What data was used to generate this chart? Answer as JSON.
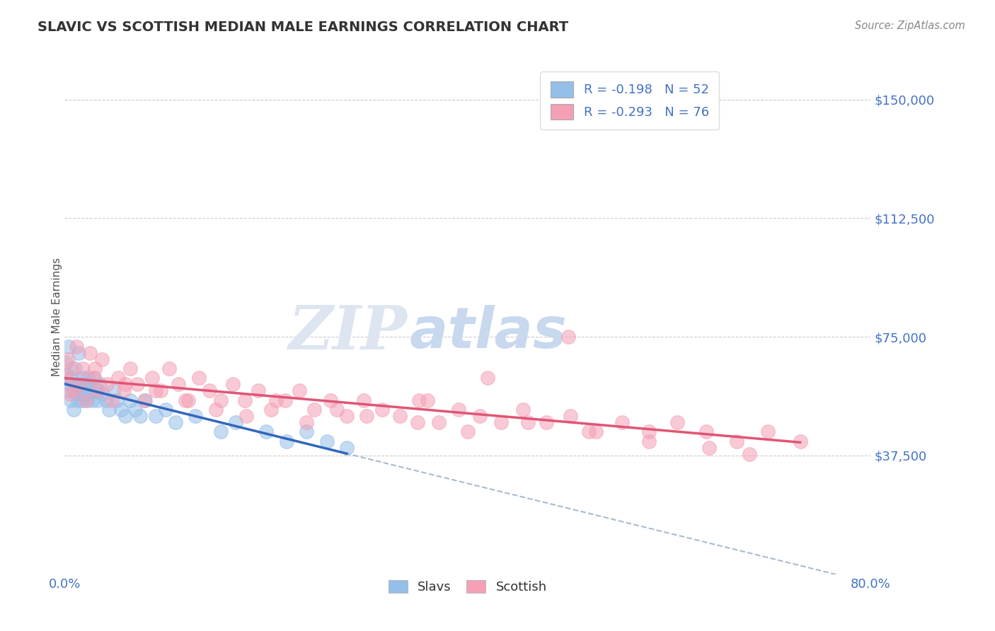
{
  "title": "SLAVIC VS SCOTTISH MEDIAN MALE EARNINGS CORRELATION CHART",
  "source": "Source: ZipAtlas.com",
  "ylabel": "Median Male Earnings",
  "xlim": [
    0.0,
    0.8
  ],
  "ylim": [
    0,
    162500
  ],
  "ytick_vals": [
    0,
    37500,
    75000,
    112500,
    150000
  ],
  "ytick_labels": [
    "",
    "$37,500",
    "$75,000",
    "$112,500",
    "$150,000"
  ],
  "xtick_vals": [
    0.0,
    0.1,
    0.2,
    0.3,
    0.4,
    0.5,
    0.6,
    0.7,
    0.8
  ],
  "xtick_labels": [
    "0.0%",
    "",
    "",
    "",
    "",
    "",
    "",
    "",
    "80.0%"
  ],
  "slavs_R": -0.198,
  "slavs_N": 52,
  "scottish_R": -0.293,
  "scottish_N": 76,
  "slavs_color": "#94bfe8",
  "scottish_color": "#f4a0b5",
  "slavs_line_color": "#3366bb",
  "scottish_line_color": "#e05575",
  "extended_line_color": "#aabbcc",
  "grid_color": "#cccccc",
  "background_color": "#ffffff",
  "title_color": "#333333",
  "axis_color": "#4472c4",
  "source_color": "#888888",
  "watermark_zip_color": "#dde5f0",
  "watermark_atlas_color": "#c8d8ee",
  "slavs_x": [
    0.001,
    0.002,
    0.003,
    0.004,
    0.005,
    0.006,
    0.007,
    0.008,
    0.009,
    0.01,
    0.011,
    0.012,
    0.013,
    0.014,
    0.015,
    0.016,
    0.017,
    0.018,
    0.019,
    0.02,
    0.021,
    0.022,
    0.023,
    0.024,
    0.025,
    0.027,
    0.029,
    0.031,
    0.033,
    0.035,
    0.038,
    0.041,
    0.044,
    0.048,
    0.052,
    0.056,
    0.06,
    0.065,
    0.07,
    0.075,
    0.08,
    0.09,
    0.1,
    0.11,
    0.13,
    0.155,
    0.17,
    0.2,
    0.22,
    0.24,
    0.26,
    0.28
  ],
  "slavs_y": [
    67000,
    63000,
    58000,
    72000,
    60000,
    55000,
    62000,
    58000,
    52000,
    65000,
    60000,
    57000,
    55000,
    70000,
    60000,
    58000,
    55000,
    62000,
    57000,
    60000,
    58000,
    55000,
    62000,
    57000,
    60000,
    55000,
    62000,
    58000,
    55000,
    60000,
    57000,
    55000,
    52000,
    58000,
    55000,
    52000,
    50000,
    55000,
    52000,
    50000,
    55000,
    50000,
    52000,
    48000,
    50000,
    45000,
    48000,
    45000,
    42000,
    45000,
    42000,
    40000
  ],
  "scottish_x": [
    0.001,
    0.003,
    0.005,
    0.007,
    0.009,
    0.012,
    0.015,
    0.018,
    0.021,
    0.025,
    0.029,
    0.033,
    0.037,
    0.042,
    0.047,
    0.053,
    0.059,
    0.065,
    0.072,
    0.079,
    0.087,
    0.095,
    0.104,
    0.113,
    0.123,
    0.133,
    0.144,
    0.155,
    0.167,
    0.179,
    0.192,
    0.205,
    0.219,
    0.233,
    0.248,
    0.264,
    0.28,
    0.297,
    0.315,
    0.333,
    0.352,
    0.371,
    0.391,
    0.412,
    0.433,
    0.455,
    0.478,
    0.502,
    0.527,
    0.553,
    0.58,
    0.608,
    0.637,
    0.667,
    0.698,
    0.73,
    0.03,
    0.06,
    0.09,
    0.12,
    0.15,
    0.18,
    0.21,
    0.24,
    0.27,
    0.3,
    0.35,
    0.4,
    0.46,
    0.52,
    0.58,
    0.64,
    0.5,
    0.42,
    0.36,
    0.68
  ],
  "scottish_y": [
    62000,
    68000,
    57000,
    65000,
    58000,
    72000,
    60000,
    65000,
    55000,
    70000,
    62000,
    58000,
    68000,
    60000,
    55000,
    62000,
    58000,
    65000,
    60000,
    55000,
    62000,
    58000,
    65000,
    60000,
    55000,
    62000,
    58000,
    55000,
    60000,
    55000,
    58000,
    52000,
    55000,
    58000,
    52000,
    55000,
    50000,
    55000,
    52000,
    50000,
    55000,
    48000,
    52000,
    50000,
    48000,
    52000,
    48000,
    50000,
    45000,
    48000,
    45000,
    48000,
    45000,
    42000,
    45000,
    42000,
    65000,
    60000,
    58000,
    55000,
    52000,
    50000,
    55000,
    48000,
    52000,
    50000,
    48000,
    45000,
    48000,
    45000,
    42000,
    40000,
    75000,
    62000,
    55000,
    38000
  ]
}
